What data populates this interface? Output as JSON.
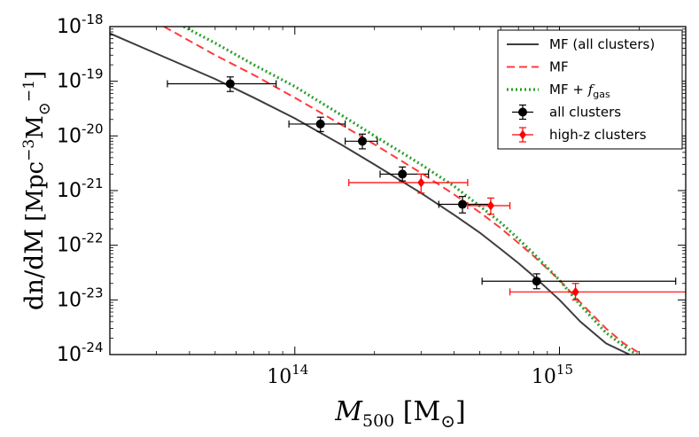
{
  "chart_data": {
    "type": "scatter",
    "title": "",
    "xscale": "log",
    "yscale": "log",
    "xlim": [
      20000000000000.0,
      3000000000000000.0
    ],
    "ylim": [
      1e-24,
      1e-18
    ],
    "xlabel_parts": {
      "main": "M",
      "sub": "500",
      "unit": "[M",
      "unit_close": "]",
      "sun": "⊙"
    },
    "ylabel_parts": {
      "main": "dn/dM",
      "unit": "[Mpc",
      "exp": "−3",
      "mass": "M",
      "sun": "⊙",
      "exp2": "−1",
      "close": "]"
    },
    "x_ticks": [
      {
        "value": 100000000000000.0,
        "base": "10",
        "exp": "14"
      },
      {
        "value": 1000000000000000.0,
        "base": "10",
        "exp": "15"
      }
    ],
    "y_ticks": [
      {
        "value": 1e-18,
        "base": "10",
        "exp": "-18"
      },
      {
        "value": 1e-19,
        "base": "10",
        "exp": "-19"
      },
      {
        "value": 1e-20,
        "base": "10",
        "exp": "-20"
      },
      {
        "value": 1e-21,
        "base": "10",
        "exp": "-21"
      },
      {
        "value": 1e-22,
        "base": "10",
        "exp": "-22"
      },
      {
        "value": 1e-23,
        "base": "10",
        "exp": "-23"
      },
      {
        "value": 1e-24,
        "base": "10",
        "exp": "-24"
      }
    ],
    "curves": [
      {
        "name": "MF (all clusters)",
        "style": "solid",
        "color": "#3d3d3d",
        "x": [
          20000000000000.0,
          30000000000000.0,
          50000000000000.0,
          70000000000000.0,
          100000000000000.0,
          150000000000000.0,
          200000000000000.0,
          300000000000000.0,
          400000000000000.0,
          500000000000000.0,
          600000000000000.0,
          700000000000000.0,
          800000000000000.0,
          1000000000000000.0,
          1200000000000000.0,
          1500000000000000.0,
          1840000000000000.0
        ],
        "y": [
          7.5e-19,
          3.2e-19,
          1.1e-19,
          5e-20,
          2.1e-20,
          6.9e-21,
          3e-21,
          9e-22,
          3.6e-22,
          1.7e-22,
          8.5e-23,
          4.7e-23,
          2.7e-23,
          1e-23,
          4e-24,
          1.6e-24,
          1e-24
        ]
      },
      {
        "name": "MF",
        "style": "dashed",
        "color": "#ff3b3b",
        "x": [
          32000000000000.0,
          50000000000000.0,
          70000000000000.0,
          100000000000000.0,
          150000000000000.0,
          200000000000000.0,
          300000000000000.0,
          400000000000000.0,
          500000000000000.0,
          600000000000000.0,
          700000000000000.0,
          800000000000000.0,
          1000000000000000.0,
          1200000000000000.0,
          1500000000000000.0,
          1750000000000000.0,
          2050000000000000.0
        ],
        "y": [
          1e-18,
          3e-19,
          1.3e-19,
          5e-20,
          1.6e-20,
          7e-21,
          2.1e-21,
          8.5e-22,
          4e-22,
          2.05e-22,
          1.1e-22,
          6.3e-23,
          2.3e-23,
          9e-24,
          3e-24,
          1.6e-24,
          1e-24
        ]
      },
      {
        "name": "MF + f_gas",
        "style": "dotted",
        "color": "#2ca02c",
        "x": [
          38000000000000.0,
          50000000000000.0,
          70000000000000.0,
          100000000000000.0,
          150000000000000.0,
          200000000000000.0,
          300000000000000.0,
          400000000000000.0,
          500000000000000.0,
          600000000000000.0,
          700000000000000.0,
          800000000000000.0,
          1000000000000000.0,
          1200000000000000.0,
          1500000000000000.0,
          1800000000000000.0,
          1960000000000000.0
        ],
        "y": [
          1e-18,
          5e-19,
          2e-19,
          8e-20,
          2.4e-20,
          1e-20,
          3e-21,
          1.2e-21,
          5.2e-22,
          2.6e-22,
          1.3e-22,
          7e-23,
          2.3e-23,
          8e-24,
          2.5e-24,
          1.3e-24,
          1e-24
        ]
      }
    ],
    "series": [
      {
        "name": "all clusters",
        "color": "#000000",
        "marker": "circle",
        "points": [
          {
            "x": 57000000000000.0,
            "y": 9e-20,
            "xlo": 33000000000000.0,
            "xhi": 85000000000000.0,
            "ylo": 6.5e-20,
            "yhi": 1.2e-19
          },
          {
            "x": 125000000000000.0,
            "y": 1.65e-20,
            "xlo": 95000000000000.0,
            "xhi": 155000000000000.0,
            "ylo": 1.2e-20,
            "yhi": 2.2e-20
          },
          {
            "x": 180000000000000.0,
            "y": 8e-21,
            "xlo": 155000000000000.0,
            "xhi": 205000000000000.0,
            "ylo": 5.8e-21,
            "yhi": 1.08e-20
          },
          {
            "x": 255000000000000.0,
            "y": 2e-21,
            "xlo": 210000000000000.0,
            "xhi": 320000000000000.0,
            "ylo": 1.5e-21,
            "yhi": 2.7e-21
          },
          {
            "x": 430000000000000.0,
            "y": 5.6e-22,
            "xlo": 350000000000000.0,
            "xhi": 550000000000000.0,
            "ylo": 3.9e-22,
            "yhi": 7.8e-22
          },
          {
            "x": 820000000000000.0,
            "y": 2.2e-23,
            "xlo": 510000000000000.0,
            "xhi": 2750000000000000.0,
            "ylo": 1.6e-23,
            "yhi": 3e-23
          }
        ]
      },
      {
        "name": "high-z clusters",
        "color": "#ff0000",
        "marker": "diamond",
        "points": [
          {
            "x": 300000000000000.0,
            "y": 1.4e-21,
            "xlo": 160000000000000.0,
            "xhi": 450000000000000.0,
            "ylo": 9e-22,
            "yhi": 2e-21
          },
          {
            "x": 550000000000000.0,
            "y": 5.3e-22,
            "xlo": 450000000000000.0,
            "xhi": 650000000000000.0,
            "ylo": 3.7e-22,
            "yhi": 7.3e-22
          },
          {
            "x": 1150000000000000.0,
            "y": 1.4e-23,
            "xlo": 650000000000000.0,
            "xhi": 3000000000000000.0,
            "ylo": 1e-23,
            "yhi": 2e-23
          }
        ]
      }
    ],
    "legend": {
      "placement": "top-right",
      "entries": [
        {
          "label": "MF (all clusters)",
          "kind": "solid",
          "color": "#3d3d3d"
        },
        {
          "label": "MF",
          "kind": "dashed",
          "color": "#ff3b3b"
        },
        {
          "label": "MF + ",
          "math": "f",
          "math_sub": "gas",
          "kind": "dotted",
          "color": "#2ca02c"
        },
        {
          "label": "all clusters",
          "kind": "circle",
          "color": "#000000"
        },
        {
          "label": "high-z clusters",
          "kind": "diamond",
          "color": "#ff0000"
        }
      ]
    }
  }
}
